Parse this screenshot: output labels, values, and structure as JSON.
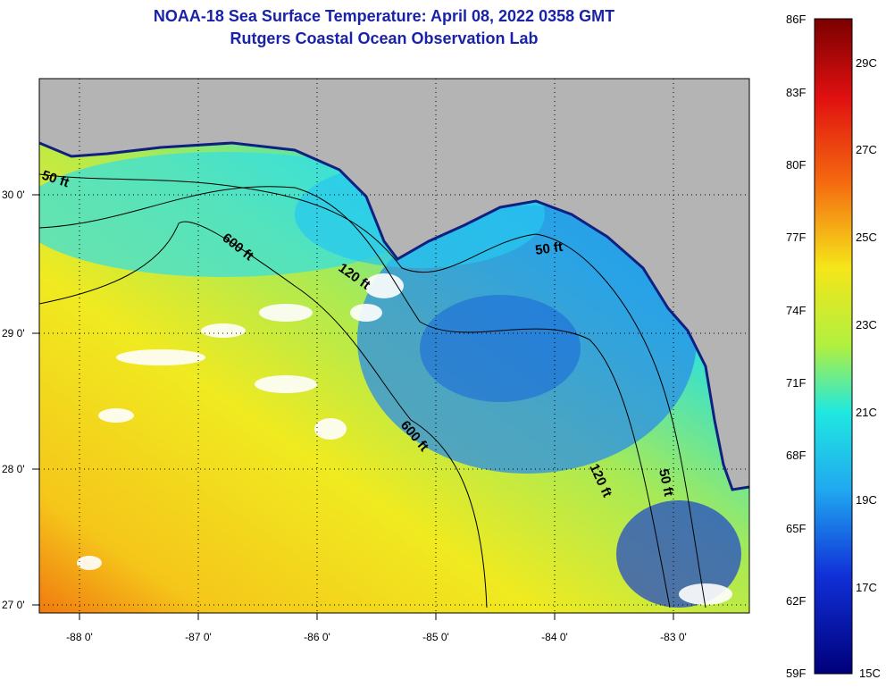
{
  "header": {
    "title": "NOAA-18 Sea Surface Temperature:  April 08, 2022 0358 GMT",
    "subtitle": "Rutgers Coastal Ocean Observation Lab"
  },
  "map": {
    "lon_ticks": [
      "-88 0'",
      "-87 0'",
      "-86 0'",
      "-85 0'",
      "-84 0'",
      "-83 0'"
    ],
    "lat_ticks": [
      "30 0'",
      "29 0'",
      "28 0'",
      "27 0'"
    ],
    "contours": [
      {
        "label": "50 ft",
        "id": "c50a"
      },
      {
        "label": "600 ft",
        "id": "c600a"
      },
      {
        "label": "120 ft",
        "id": "c120a"
      },
      {
        "label": "50 ft",
        "id": "c50b"
      },
      {
        "label": "600 ft",
        "id": "c600b"
      },
      {
        "label": "120 ft",
        "id": "c120b"
      },
      {
        "label": "50 ft",
        "id": "c50c"
      }
    ]
  },
  "colorbar": {
    "fahrenheit": [
      "86F",
      "83F",
      "80F",
      "77F",
      "74F",
      "71F",
      "68F",
      "65F",
      "62F",
      "59F"
    ],
    "celsius": [
      "29C",
      "27C",
      "25C",
      "23C",
      "21C",
      "19C",
      "17C",
      "15C"
    ]
  }
}
